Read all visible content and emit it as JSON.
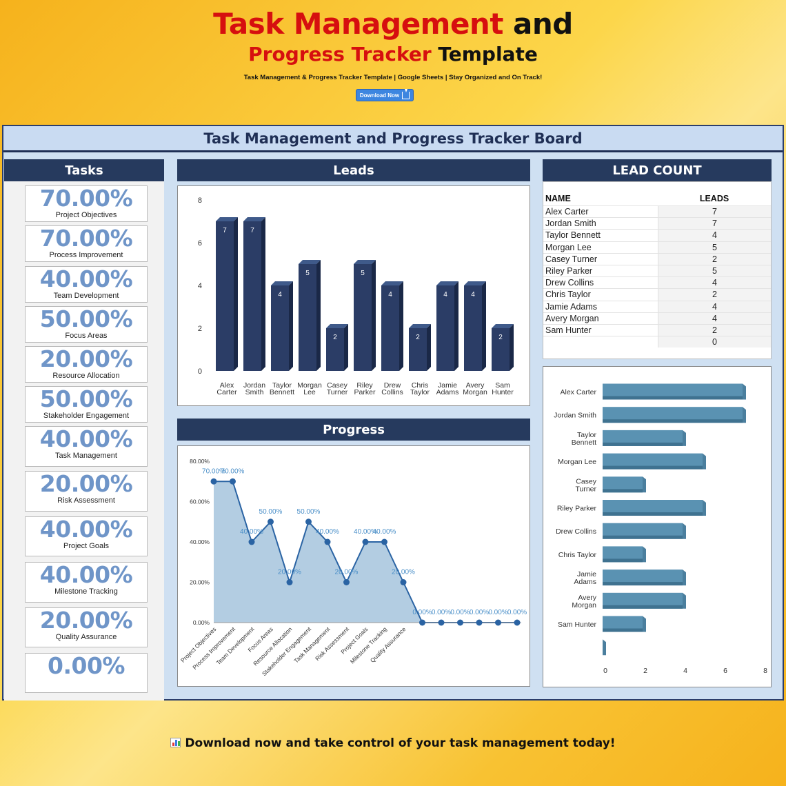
{
  "hero": {
    "title_red": "Task Management",
    "title_black": " and",
    "subtitle_red": "Progress Tracker",
    "subtitle_black": " Template",
    "tagline": "Task Management & Progress Tracker Template | Google Sheets | Stay Organized and On Track!",
    "download_label": "Download Now"
  },
  "board": {
    "title": "Task Management and Progress Tracker Board"
  },
  "tasks": {
    "header": "Tasks",
    "items": [
      {
        "pct": "70.00%",
        "label": "Project Objectives"
      },
      {
        "pct": "70.00%",
        "label": "Process Improvement"
      },
      {
        "pct": "40.00%",
        "label": "Team Development"
      },
      {
        "pct": "50.00%",
        "label": "Focus Areas"
      },
      {
        "pct": "20.00%",
        "label": "Resource Allocation"
      },
      {
        "pct": "50.00%",
        "label": "Stakeholder Engagement"
      },
      {
        "pct": "40.00%",
        "label": "Task Management"
      },
      {
        "pct": "20.00%",
        "label": "Risk Assessment"
      },
      {
        "pct": "40.00%",
        "label": "Project Goals"
      },
      {
        "pct": "40.00%",
        "label": "Milestone Tracking"
      },
      {
        "pct": "20.00%",
        "label": "Quality Assurance"
      },
      {
        "pct": "0.00%",
        "label": ""
      }
    ]
  },
  "leads_panel": {
    "header": "Leads"
  },
  "progress_panel": {
    "header": "Progress"
  },
  "lead_count": {
    "header": "LEAD COUNT",
    "col_name": "NAME",
    "col_leads": "LEADS",
    "rows": [
      {
        "name": "Alex Carter",
        "leads": "7"
      },
      {
        "name": "Jordan Smith",
        "leads": "7"
      },
      {
        "name": "Taylor Bennett",
        "leads": "4"
      },
      {
        "name": "Morgan Lee",
        "leads": "5"
      },
      {
        "name": "Casey Turner",
        "leads": "2"
      },
      {
        "name": "Riley Parker",
        "leads": "5"
      },
      {
        "name": "Drew Collins",
        "leads": "4"
      },
      {
        "name": "Chris Taylor",
        "leads": "2"
      },
      {
        "name": "Jamie Adams",
        "leads": "4"
      },
      {
        "name": "Avery Morgan",
        "leads": "4"
      },
      {
        "name": "Sam Hunter",
        "leads": "2"
      },
      {
        "name": "",
        "leads": "0"
      }
    ]
  },
  "footer": {
    "text": "Download now and take control of your task management today!"
  },
  "colors": {
    "navy": "#263a5e",
    "bar_navy": "#2b3d66",
    "bar_teal": "#5a92b2",
    "pct_blue": "#6f95c8",
    "area_fill": "#b3cde2",
    "line_blue": "#2a63a3",
    "title_red": "#d60f0f"
  },
  "chart_data": [
    {
      "type": "bar",
      "categories": [
        [
          "Alex",
          "Carter"
        ],
        [
          "Jordan",
          "Smith"
        ],
        [
          "Taylor",
          "Bennett"
        ],
        [
          "Morgan",
          "Lee"
        ],
        [
          "Casey",
          "Turner"
        ],
        [
          "Riley",
          "Parker"
        ],
        [
          "Drew",
          "Collins"
        ],
        [
          "Chris",
          "Taylor"
        ],
        [
          "Jamie",
          "Adams"
        ],
        [
          "Avery",
          "Morgan"
        ],
        [
          "Sam",
          "Hunter"
        ]
      ],
      "values": [
        7,
        7,
        4,
        5,
        2,
        5,
        4,
        2,
        4,
        4,
        2
      ],
      "ylim": [
        0,
        8
      ],
      "yticks": [
        0,
        2,
        4,
        6,
        8
      ],
      "data_labels": true
    },
    {
      "type": "area",
      "categories": [
        "Project Objectives",
        "Process Improvement",
        "Team Development",
        "Focus Areas",
        "Resource Allocation",
        "Stakeholder Engagement",
        "Task Management",
        "Risk Assessment",
        "Project Goals",
        "Milestone Tracking",
        "Quality Assurance",
        "",
        "",
        "",
        "",
        "",
        ""
      ],
      "values": [
        70,
        70,
        40,
        50,
        20,
        50,
        40,
        20,
        40,
        40,
        20,
        0,
        0,
        0,
        0,
        0,
        0
      ],
      "value_labels": [
        "70.00%",
        "70.00%",
        "40.00%",
        "50.00%",
        "20.00%",
        "50.00%",
        "40.00%",
        "20.00%",
        "40.00%",
        "40.00%",
        "20.00%",
        "0.00%",
        "0.00%",
        "0.00%",
        "0.00%",
        "0.00%",
        "0.00%"
      ],
      "ylim": [
        0,
        80
      ],
      "yticks": [
        "0.00%",
        "20.00%",
        "40.00%",
        "60.00%",
        "80.00%"
      ]
    },
    {
      "type": "bar",
      "orientation": "horizontal",
      "categories": [
        [
          "Alex Carter"
        ],
        [
          "Jordan Smith"
        ],
        [
          "Taylor",
          "Bennett"
        ],
        [
          "Morgan Lee"
        ],
        [
          "Casey",
          "Turner"
        ],
        [
          "Riley Parker"
        ],
        [
          "Drew Collins"
        ],
        [
          "Chris Taylor"
        ],
        [
          "Jamie",
          "Adams"
        ],
        [
          "Avery",
          "Morgan"
        ],
        [
          "Sam Hunter"
        ],
        [
          ""
        ]
      ],
      "values": [
        7,
        7,
        4,
        5,
        2,
        5,
        4,
        2,
        4,
        4,
        2,
        0
      ],
      "xlim": [
        0,
        8
      ],
      "xticks": [
        0,
        2,
        4,
        6,
        8
      ]
    }
  ]
}
